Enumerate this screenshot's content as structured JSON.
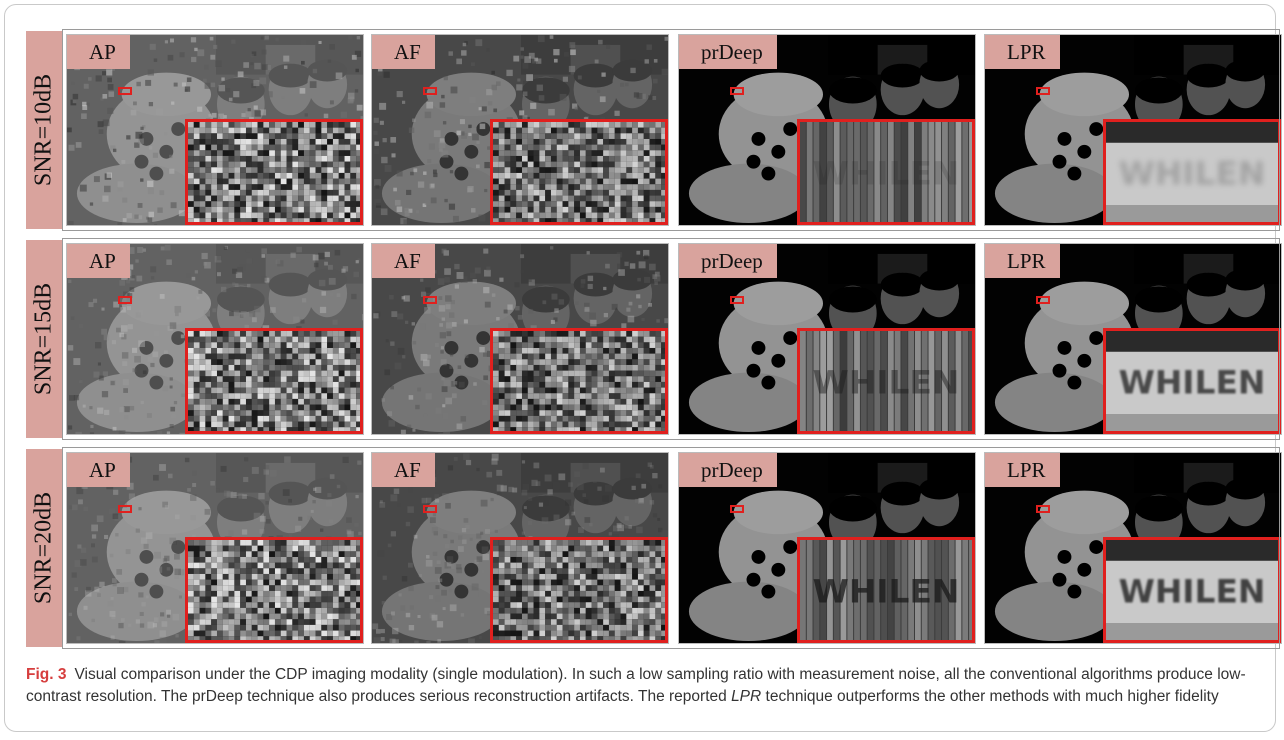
{
  "figure": {
    "number": "Fig. 3",
    "caption_before": "Visual comparison under the CDP imaging modality (single modulation). In such a low sampling ratio with measurement noise, all the conventional algorithms produce low-contrast resolution. The prDeep technique also produces serious reconstruction artifacts. The reported ",
    "caption_italic": "LPR",
    "caption_after": " technique outperforms the other methods with much higher fidelity"
  },
  "methods": [
    "AP",
    "AF",
    "prDeep",
    "LPR"
  ],
  "rows": [
    {
      "snr": "SNR=10dB"
    },
    {
      "snr": "SNR=15dB"
    },
    {
      "snr": "SNR=20dB"
    }
  ],
  "zoom_text": "WHILEN",
  "colors": {
    "label_bg": "#d9a39d",
    "roi_red": "#e0201e",
    "figno_red": "#d63e3e"
  }
}
